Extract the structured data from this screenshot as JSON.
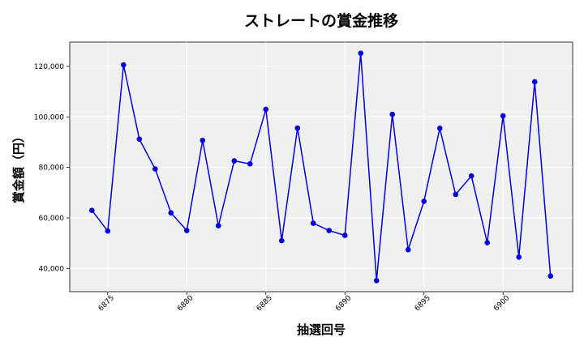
{
  "chart_data": {
    "type": "line",
    "title": "ストレートの賞金推移",
    "xlabel": "抽選回号",
    "ylabel": "賞金額（円）",
    "x": [
      6874,
      6875,
      6876,
      6877,
      6878,
      6879,
      6880,
      6881,
      6882,
      6883,
      6884,
      6885,
      6886,
      6887,
      6888,
      6889,
      6890,
      6891,
      6892,
      6893,
      6894,
      6895,
      6896,
      6897,
      6898,
      6899,
      6900,
      6901,
      6902,
      6903
    ],
    "series": [
      {
        "values": [
          63000,
          54800,
          120600,
          91200,
          79400,
          62000,
          55000,
          90700,
          56900,
          82600,
          81400,
          103000,
          51000,
          95600,
          57900,
          55000,
          53100,
          125200,
          35200,
          101000,
          47400,
          66600,
          95500,
          69300,
          76600,
          50200,
          100400,
          44500,
          113900,
          37000
        ],
        "color": "#0000dd"
      }
    ],
    "xlim": [
      6872.6,
      6904.4
    ],
    "ylim": [
      30800,
      129600
    ],
    "xticks": [
      6875,
      6880,
      6885,
      6890,
      6895,
      6900
    ],
    "yticks": [
      40000,
      60000,
      80000,
      100000,
      120000
    ],
    "ytick_labels": [
      "40,000",
      "60,000",
      "80,000",
      "100,000",
      "120,000"
    ],
    "grid": true,
    "plot_background": "#f0f0f0"
  }
}
